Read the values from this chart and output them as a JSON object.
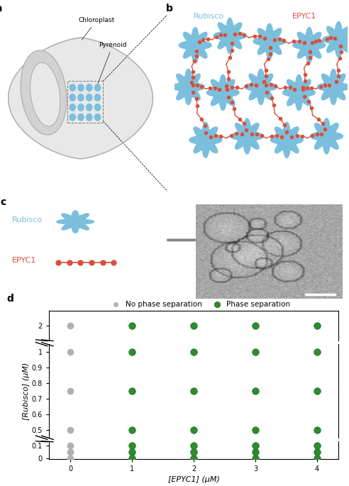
{
  "panel_d": {
    "no_sep_points": [
      [
        0,
        0
      ],
      [
        0,
        0.05
      ],
      [
        0,
        0.1
      ],
      [
        0,
        0.5
      ],
      [
        0,
        0.75
      ],
      [
        0,
        1.0
      ],
      [
        0,
        2.0
      ]
    ],
    "sep_points": [
      [
        1,
        0
      ],
      [
        1,
        0.05
      ],
      [
        1,
        0.1
      ],
      [
        1,
        0.5
      ],
      [
        1,
        0.75
      ],
      [
        1,
        1.0
      ],
      [
        1,
        2.0
      ],
      [
        2,
        0
      ],
      [
        2,
        0.05
      ],
      [
        2,
        0.1
      ],
      [
        2,
        0.5
      ],
      [
        2,
        0.75
      ],
      [
        2,
        1.0
      ],
      [
        2,
        2.0
      ],
      [
        3,
        0
      ],
      [
        3,
        0.05
      ],
      [
        3,
        0.1
      ],
      [
        3,
        0.5
      ],
      [
        3,
        0.75
      ],
      [
        3,
        1.0
      ],
      [
        3,
        2.0
      ],
      [
        4,
        0
      ],
      [
        4,
        0.05
      ],
      [
        4,
        0.1
      ],
      [
        4,
        0.5
      ],
      [
        4,
        0.75
      ],
      [
        4,
        1.0
      ],
      [
        4,
        2.0
      ]
    ],
    "xlabel": "[EPYC1] (μM)",
    "ylabel": "[Rubisco] (μM)",
    "legend_no_sep": "No phase separation",
    "legend_sep": "Phase separation",
    "no_sep_color": "#b0b0b0",
    "sep_color": "#2e8b2e",
    "marker_size": 7
  },
  "rubisco_color": "#7bbfdd",
  "epyc1_color": "#d94f3a",
  "background_color": "#ffffff",
  "panel_labels": [
    "a",
    "b",
    "c",
    "d"
  ]
}
